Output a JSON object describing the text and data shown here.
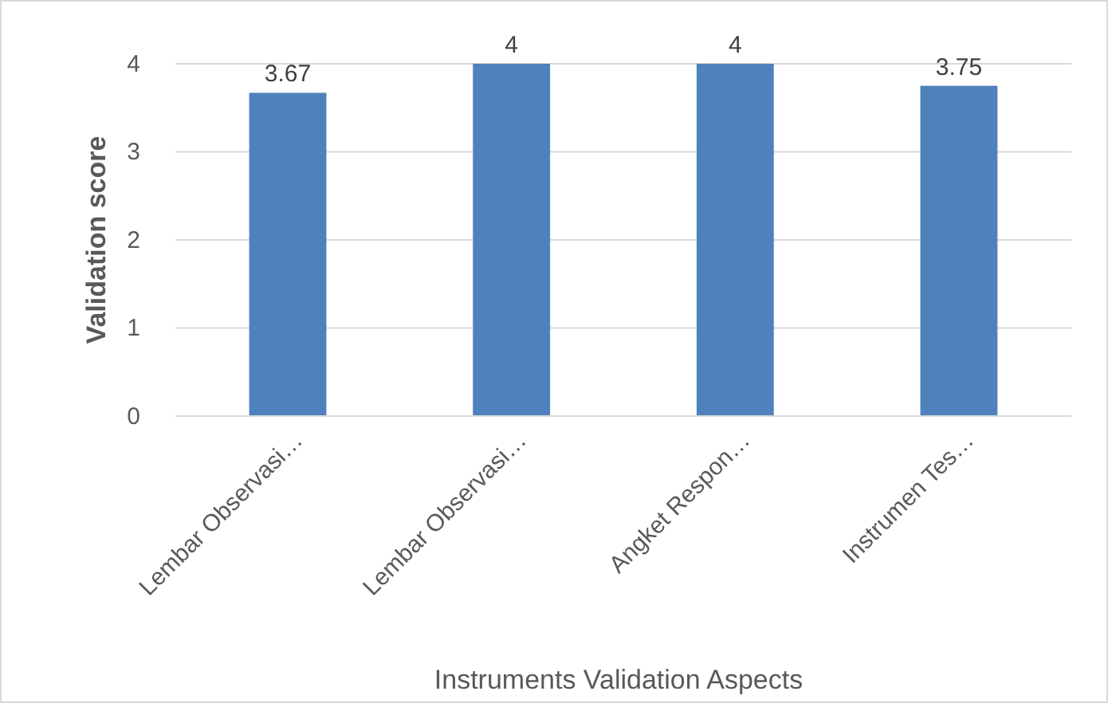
{
  "chart_data": {
    "type": "bar",
    "xlabel": "Instruments Validation Aspects",
    "ylabel": "Validation score",
    "categories": [
      "Lembar Observasi…",
      "Lembar Observasi…",
      "Angket Respon…",
      "Instrumen Tes…"
    ],
    "values": [
      3.67,
      4,
      4,
      3.75
    ],
    "color": "#4f81bd",
    "ylim": [
      0,
      4
    ],
    "yticks": [
      0,
      1,
      2,
      3,
      4
    ],
    "grid": "y",
    "data_labels": true
  }
}
